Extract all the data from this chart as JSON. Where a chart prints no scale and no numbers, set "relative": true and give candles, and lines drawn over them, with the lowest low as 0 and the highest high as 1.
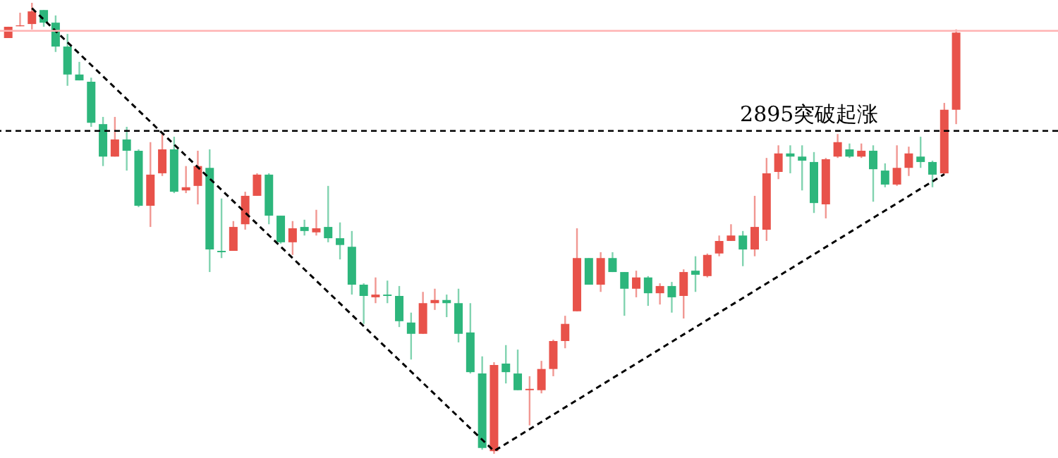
{
  "chart_data": {
    "type": "candlestick",
    "relative": true,
    "categories": [
      null,
      null,
      null,
      null,
      null,
      null,
      null,
      null,
      null,
      null,
      null,
      null,
      null,
      null,
      null,
      null,
      null,
      null,
      null,
      null,
      null,
      null,
      null,
      null,
      null,
      null,
      null,
      null,
      null,
      null,
      null,
      null,
      null,
      null,
      null,
      null,
      null,
      null,
      null,
      null,
      null,
      null,
      null,
      null,
      null,
      null,
      null,
      null,
      null,
      null,
      null,
      null,
      null,
      null,
      null,
      null,
      null,
      null,
      null,
      null,
      null,
      null,
      null,
      null,
      null,
      null,
      null,
      null,
      null,
      null,
      null,
      null,
      null,
      null,
      null,
      null,
      null,
      null,
      null,
      null,
      null
    ],
    "ohlc": [
      [
        0.922,
        0.947,
        0.922,
        0.947
      ],
      [
        0.948,
        0.978,
        0.948,
        0.95
      ],
      [
        0.953,
        1,
        0.941,
        0.981
      ],
      [
        0.984,
        0.984,
        0.947,
        0.956
      ],
      [
        0.956,
        0.972,
        0.891,
        0.903
      ],
      [
        0.903,
        0.931,
        0.816,
        0.841
      ],
      [
        0.841,
        0.869,
        0.828,
        0.828
      ],
      [
        0.825,
        0.834,
        0.725,
        0.734
      ],
      [
        0.731,
        0.747,
        0.638,
        0.659
      ],
      [
        0.659,
        0.747,
        0.659,
        0.697
      ],
      [
        0.697,
        0.725,
        0.628,
        0.672
      ],
      [
        0.672,
        0.675,
        0.547,
        0.55
      ],
      [
        0.55,
        0.691,
        0.503,
        0.619
      ],
      [
        0.622,
        0.709,
        0.616,
        0.675
      ],
      [
        0.675,
        0.703,
        0.578,
        0.581
      ],
      [
        0.584,
        0.638,
        0.578,
        0.591
      ],
      [
        0.594,
        0.672,
        0.553,
        0.638
      ],
      [
        0.634,
        0.675,
        0.403,
        0.453
      ],
      [
        0.45,
        0.566,
        0.434,
        0.447
      ],
      [
        0.45,
        0.516,
        0.45,
        0.503
      ],
      [
        0.509,
        0.581,
        0.497,
        0.572
      ],
      [
        0.572,
        0.622,
        0.572,
        0.619
      ],
      [
        0.619,
        0.622,
        0.509,
        0.528
      ],
      [
        0.528,
        0.528,
        0.466,
        0.469
      ],
      [
        0.469,
        0.516,
        0.441,
        0.5
      ],
      [
        0.503,
        0.519,
        0.484,
        0.494
      ],
      [
        0.491,
        0.541,
        0.484,
        0.5
      ],
      [
        0.503,
        0.594,
        0.469,
        0.478
      ],
      [
        0.478,
        0.513,
        0.431,
        0.463
      ],
      [
        0.459,
        0.494,
        0.353,
        0.375
      ],
      [
        0.375,
        0.378,
        0.288,
        0.35
      ],
      [
        0.347,
        0.391,
        0.334,
        0.353
      ],
      [
        0.353,
        0.384,
        0.334,
        0.35
      ],
      [
        0.35,
        0.372,
        0.281,
        0.294
      ],
      [
        0.291,
        0.313,
        0.209,
        0.266
      ],
      [
        0.266,
        0.359,
        0.266,
        0.334
      ],
      [
        0.334,
        0.366,
        0.319,
        0.341
      ],
      [
        0.341,
        0.353,
        0.303,
        0.334
      ],
      [
        0.334,
        0.366,
        0.247,
        0.266
      ],
      [
        0.269,
        0.334,
        0.178,
        0.181
      ],
      [
        0.178,
        0.216,
        0.009,
        0.013
      ],
      [
        0.006,
        0.203,
        0,
        0.197
      ],
      [
        0.2,
        0.241,
        0.156,
        0.181
      ],
      [
        0.178,
        0.231,
        0.141,
        0.141
      ],
      [
        0.141,
        0.172,
        0.063,
        0.144
      ],
      [
        0.141,
        0.206,
        0.134,
        0.188
      ],
      [
        0.188,
        0.253,
        0.172,
        0.25
      ],
      [
        0.25,
        0.306,
        0.234,
        0.288
      ],
      [
        0.316,
        0.5,
        0.316,
        0.434
      ],
      [
        0.434,
        0.434,
        0.375,
        0.375
      ],
      [
        0.375,
        0.447,
        0.359,
        0.434
      ],
      [
        0.434,
        0.447,
        0.403,
        0.403
      ],
      [
        0.403,
        0.403,
        0.306,
        0.366
      ],
      [
        0.366,
        0.406,
        0.347,
        0.391
      ],
      [
        0.391,
        0.394,
        0.328,
        0.356
      ],
      [
        0.356,
        0.378,
        0.331,
        0.372
      ],
      [
        0.372,
        0.381,
        0.313,
        0.347
      ],
      [
        0.35,
        0.409,
        0.3,
        0.403
      ],
      [
        0.406,
        0.438,
        0.359,
        0.397
      ],
      [
        0.394,
        0.444,
        0.391,
        0.441
      ],
      [
        0.444,
        0.484,
        0.438,
        0.472
      ],
      [
        0.472,
        0.509,
        0.472,
        0.484
      ],
      [
        0.484,
        0.494,
        0.416,
        0.453
      ],
      [
        0.453,
        0.572,
        0.438,
        0.503
      ],
      [
        0.497,
        0.656,
        0.472,
        0.622
      ],
      [
        0.625,
        0.684,
        0.609,
        0.666
      ],
      [
        0.666,
        0.684,
        0.622,
        0.659
      ],
      [
        0.659,
        0.684,
        0.584,
        0.65
      ],
      [
        0.647,
        0.669,
        0.534,
        0.556
      ],
      [
        0.553,
        0.656,
        0.522,
        0.653
      ],
      [
        0.659,
        0.709,
        0.656,
        0.691
      ],
      [
        0.675,
        0.688,
        0.656,
        0.659
      ],
      [
        0.659,
        0.688,
        0.656,
        0.672
      ],
      [
        0.672,
        0.684,
        0.559,
        0.631
      ],
      [
        0.628,
        0.644,
        0.591,
        0.597
      ],
      [
        0.597,
        0.684,
        0.594,
        0.634
      ],
      [
        0.634,
        0.681,
        0.616,
        0.666
      ],
      [
        0.659,
        0.703,
        0.634,
        0.647
      ],
      [
        0.647,
        0.65,
        0.591,
        0.619
      ],
      [
        0.622,
        0.778,
        0.619,
        0.763
      ],
      [
        0.763,
        0.941,
        0.731,
        0.934
      ]
    ],
    "colors": [
      "#e8524a",
      "#e8524a",
      "#e8524a",
      "#2db67c",
      "#2db67c",
      "#2db67c",
      "#2db67c",
      "#2db67c",
      "#2db67c",
      "#e8524a",
      "#2db67c",
      "#2db67c",
      "#e8524a",
      "#e8524a",
      "#2db67c",
      "#e8524a",
      "#e8524a",
      "#2db67c",
      "#2db67c",
      "#e8524a",
      "#e8524a",
      "#e8524a",
      "#2db67c",
      "#2db67c",
      "#e8524a",
      "#2db67c",
      "#e8524a",
      "#2db67c",
      "#2db67c",
      "#2db67c",
      "#2db67c",
      "#e8524a",
      "#2db67c",
      "#2db67c",
      "#2db67c",
      "#e8524a",
      "#e8524a",
      "#2db67c",
      "#2db67c",
      "#2db67c",
      "#2db67c",
      "#e8524a",
      "#2db67c",
      "#2db67c",
      "#e8524a",
      "#e8524a",
      "#e8524a",
      "#e8524a",
      "#e8524a",
      "#2db67c",
      "#e8524a",
      "#2db67c",
      "#2db67c",
      "#e8524a",
      "#2db67c",
      "#e8524a",
      "#2db67c",
      "#e8524a",
      "#2db67c",
      "#e8524a",
      "#e8524a",
      "#e8524a",
      "#2db67c",
      "#e8524a",
      "#e8524a",
      "#e8524a",
      "#2db67c",
      "#2db67c",
      "#2db67c",
      "#e8524a",
      "#e8524a",
      "#2db67c",
      "#e8524a",
      "#2db67c",
      "#2db67c",
      "#e8524a",
      "#e8524a",
      "#2db67c",
      "#2db67c",
      "#e8524a",
      "#e8524a"
    ],
    "series": [
      {
        "type": "line",
        "values": [
          null,
          null,
          0.988,
          null,
          null,
          null,
          null,
          null,
          null,
          null,
          null,
          null,
          null,
          null,
          null,
          null,
          null,
          null,
          null,
          null,
          null,
          null,
          null,
          null,
          null,
          null,
          null,
          null,
          null,
          null,
          null,
          null,
          null,
          null,
          null,
          null,
          null,
          null,
          null,
          null,
          null,
          0.006,
          null,
          null,
          null,
          null,
          null,
          null,
          null,
          null,
          null,
          null,
          null,
          null,
          null,
          null,
          null,
          null,
          null,
          null,
          null,
          null,
          null,
          null,
          null,
          null,
          null,
          null,
          null,
          null,
          null,
          null,
          null,
          null,
          null,
          null,
          null,
          null,
          null,
          0.62,
          null
        ],
        "color": "#000000",
        "line_style": "dashed"
      }
    ],
    "ref_lines": [
      {
        "axis": "y",
        "value": 0.938,
        "color": "#ffb3b3",
        "line_style": "solid"
      },
      {
        "axis": "y",
        "value": 0.716,
        "label": "2895突破起涨",
        "color": "#000000",
        "line_style": "dashed"
      }
    ]
  }
}
